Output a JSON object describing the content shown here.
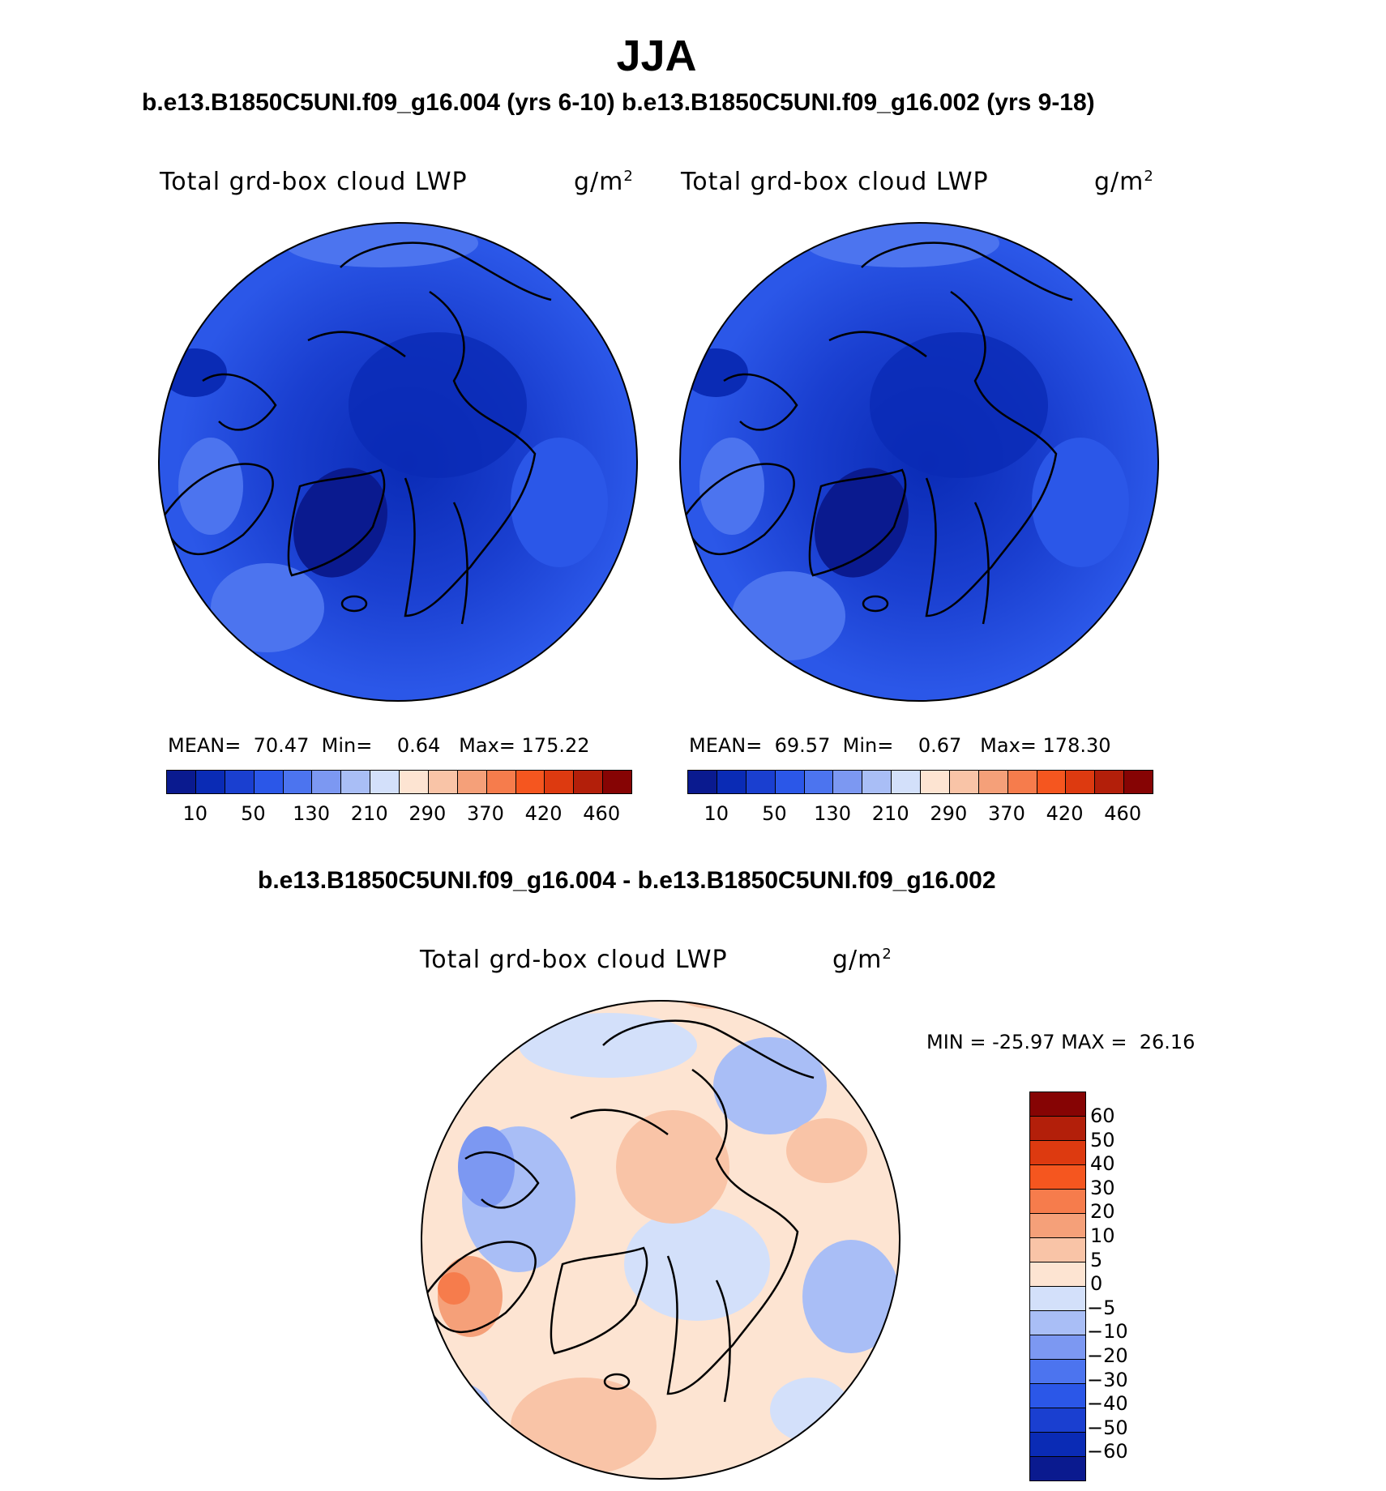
{
  "title": "JJA",
  "subtitle_top": "b.e13.B1850C5UNI.f09_g16.004 (yrs 6-10) b.e13.B1850C5UNI.f09_g16.002 (yrs 9-18)",
  "subtitle_diff": "b.e13.B1850C5UNI.f09_g16.004 - b.e13.B1850C5UNI.f09_g16.002",
  "chart_data": [
    {
      "type": "heatmap",
      "projection": "north-polar-stereographic",
      "case": "b.e13.B1850C5UNI.f09_g16.004 (yrs 6-10)",
      "variable": "Total grd-box cloud LWP",
      "units": "g/m",
      "units_exp": "2",
      "stats": {
        "mean_label": "MEAN=",
        "mean": "70.47",
        "min_label": "Min=",
        "min": "0.64",
        "max_label": "Max=",
        "max": "175.22"
      },
      "colorbar_levels": [
        "10",
        "50",
        "130",
        "210",
        "290",
        "370",
        "420",
        "460"
      ],
      "colorbar_colors": [
        "#0a1a8f",
        "#0a2bb5",
        "#1a3fd0",
        "#2b57e8",
        "#4c74ef",
        "#7c98f2",
        "#a9bef6",
        "#d3e0fa",
        "#fde4d2",
        "#f9c4a7",
        "#f5a079",
        "#f67c4c",
        "#f5561f",
        "#dd3a10",
        "#b31f0a",
        "#860404"
      ]
    },
    {
      "type": "heatmap",
      "projection": "north-polar-stereographic",
      "case": "b.e13.B1850C5UNI.f09_g16.002 (yrs 9-18)",
      "variable": "Total grd-box cloud LWP",
      "units": "g/m",
      "units_exp": "2",
      "stats": {
        "mean_label": "MEAN=",
        "mean": "69.57",
        "min_label": "Min=",
        "min": "0.67",
        "max_label": "Max=",
        "max": "178.30"
      },
      "colorbar_levels": [
        "10",
        "50",
        "130",
        "210",
        "290",
        "370",
        "420",
        "460"
      ],
      "colorbar_colors": [
        "#0a1a8f",
        "#0a2bb5",
        "#1a3fd0",
        "#2b57e8",
        "#4c74ef",
        "#7c98f2",
        "#a9bef6",
        "#d3e0fa",
        "#fde4d2",
        "#f9c4a7",
        "#f5a079",
        "#f67c4c",
        "#f5561f",
        "#dd3a10",
        "#b31f0a",
        "#860404"
      ]
    },
    {
      "type": "heatmap",
      "projection": "north-polar-stereographic",
      "case": "difference",
      "variable": "Total grd-box cloud LWP",
      "units": "g/m",
      "units_exp": "2",
      "stats": {
        "min_label": "MIN =",
        "min": "-25.97",
        "max_label": "MAX =",
        "max": "26.16"
      },
      "colorbar_levels": [
        "60",
        "50",
        "40",
        "30",
        "20",
        "10",
        "5",
        "0",
        "-5",
        "-10",
        "-20",
        "-30",
        "-40",
        "-50",
        "-60"
      ],
      "colorbar_colors": [
        "#860404",
        "#b31f0a",
        "#dd3a10",
        "#f5561f",
        "#f67c4c",
        "#f5a079",
        "#f9c4a7",
        "#fde4d2",
        "#d3e0fa",
        "#a9bef6",
        "#7c98f2",
        "#4c74ef",
        "#2b57e8",
        "#1a3fd0",
        "#0a2bb5",
        "#0a1a8f"
      ]
    }
  ]
}
